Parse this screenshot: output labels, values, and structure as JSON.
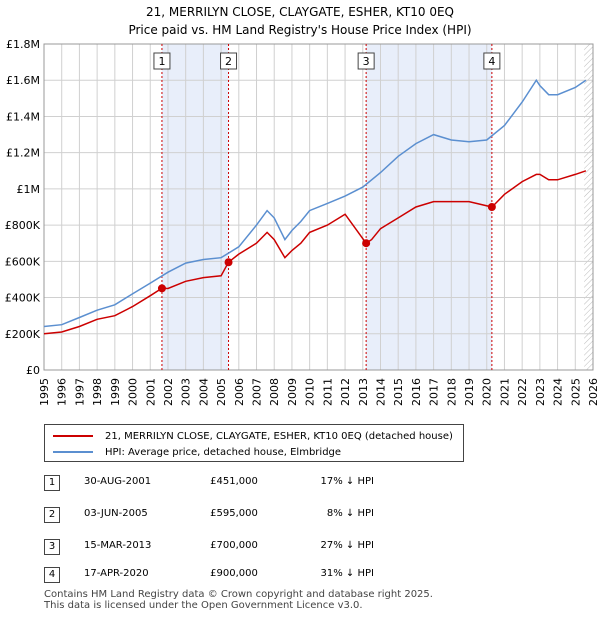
{
  "chart_data": {
    "type": "line",
    "title": "21, MERRILYN CLOSE, CLAYGATE, ESHER, KT10 0EQ",
    "subtitle": "Price paid vs. HM Land Registry's House Price Index (HPI)",
    "xlim": [
      1995,
      2026
    ],
    "ylim": [
      0,
      1800000
    ],
    "x_ticks": [
      1995,
      1996,
      1997,
      1998,
      1999,
      2000,
      2001,
      2002,
      2003,
      2004,
      2005,
      2006,
      2007,
      2008,
      2009,
      2010,
      2011,
      2012,
      2013,
      2014,
      2015,
      2016,
      2017,
      2018,
      2019,
      2020,
      2021,
      2022,
      2023,
      2024,
      2025,
      2026
    ],
    "x_tick_labels": [
      "1995",
      "1996",
      "1997",
      "1998",
      "1999",
      "2000",
      "2001",
      "2002",
      "2003",
      "2004",
      "2005",
      "2006",
      "2007",
      "2008",
      "2009",
      "2010",
      "2011",
      "2012",
      "2013",
      "2014",
      "2015",
      "2016",
      "2017",
      "2018",
      "2019",
      "2020",
      "2021",
      "2022",
      "2023",
      "2024",
      "2025",
      "2026"
    ],
    "y_ticks": [
      0,
      200000,
      400000,
      600000,
      800000,
      1000000,
      1200000,
      1400000,
      1600000,
      1800000
    ],
    "y_tick_labels": [
      "£0",
      "£200K",
      "£400K",
      "£600K",
      "£800K",
      "£1M",
      "£1.2M",
      "£1.4M",
      "£1.6M",
      "£1.8M"
    ],
    "series": [
      {
        "name": "21, MERRILYN CLOSE, CLAYGATE, ESHER, KT10 0EQ (detached house)",
        "color": "#cc0000",
        "x": [
          1995,
          1996,
          1997,
          1998,
          1999,
          2000,
          2001,
          2001.66,
          2002,
          2003,
          2004,
          2005,
          2005.42,
          2006,
          2007,
          2007.6,
          2008,
          2008.6,
          2009,
          2009.5,
          2010,
          2011,
          2012,
          2013.19,
          2013.5,
          2014,
          2015,
          2016,
          2017,
          2018,
          2019,
          2020.29,
          2020.5,
          2021,
          2022,
          2022.8,
          2023,
          2023.5,
          2024,
          2025,
          2025.6
        ],
        "values": [
          200000,
          210000,
          240000,
          280000,
          300000,
          350000,
          410000,
          451000,
          450000,
          490000,
          510000,
          520000,
          595000,
          640000,
          700000,
          760000,
          720000,
          620000,
          660000,
          700000,
          760000,
          800000,
          860000,
          700000,
          720000,
          780000,
          840000,
          900000,
          930000,
          930000,
          930000,
          900000,
          920000,
          970000,
          1040000,
          1080000,
          1080000,
          1050000,
          1050000,
          1080000,
          1100000
        ]
      },
      {
        "name": "HPI: Average price, detached house, Elmbridge",
        "color": "#5b8fd0",
        "x": [
          1995,
          1996,
          1997,
          1998,
          1999,
          2000,
          2001,
          2002,
          2003,
          2004,
          2005,
          2006,
          2007,
          2007.6,
          2008,
          2008.6,
          2009,
          2009.5,
          2010,
          2011,
          2012,
          2013,
          2014,
          2015,
          2016,
          2017,
          2018,
          2019,
          2020,
          2021,
          2022,
          2022.8,
          2023,
          2023.5,
          2024,
          2025,
          2025.6
        ],
        "values": [
          240000,
          250000,
          290000,
          330000,
          360000,
          420000,
          480000,
          540000,
          590000,
          610000,
          620000,
          680000,
          800000,
          880000,
          840000,
          720000,
          770000,
          820000,
          880000,
          920000,
          960000,
          1010000,
          1090000,
          1180000,
          1250000,
          1300000,
          1270000,
          1260000,
          1270000,
          1350000,
          1480000,
          1600000,
          1570000,
          1520000,
          1520000,
          1560000,
          1600000
        ]
      }
    ],
    "sales": [
      {
        "label": "1",
        "x": 2001.66,
        "value": 451000
      },
      {
        "label": "2",
        "x": 2005.42,
        "value": 595000
      },
      {
        "label": "3",
        "x": 2013.19,
        "value": 700000
      },
      {
        "label": "4",
        "x": 2020.29,
        "value": 900000
      }
    ],
    "shaded_ranges": [
      [
        2001.66,
        2005.42
      ],
      [
        2013.19,
        2020.29
      ]
    ],
    "hatched_from": 2025.5,
    "colors": {
      "property": "#cc0000",
      "hpi": "#5b8fd0",
      "shade": "#e8eefa",
      "grid": "#d0d0d0",
      "vline": "#cc0000"
    }
  },
  "legend": {
    "property_label": "21, MERRILYN CLOSE, CLAYGATE, ESHER, KT10 0EQ (detached house)",
    "hpi_label": "HPI: Average price, detached house, Elmbridge"
  },
  "transactions": [
    {
      "num": "1",
      "date": "30-AUG-2001",
      "price": "£451,000",
      "pct": "17% ↓ HPI"
    },
    {
      "num": "2",
      "date": "03-JUN-2005",
      "price": "£595,000",
      "pct": "8% ↓ HPI"
    },
    {
      "num": "3",
      "date": "15-MAR-2013",
      "price": "£700,000",
      "pct": "27% ↓ HPI"
    },
    {
      "num": "4",
      "date": "17-APR-2020",
      "price": "£900,000",
      "pct": "31% ↓ HPI"
    }
  ],
  "footer": {
    "line1": "Contains HM Land Registry data © Crown copyright and database right 2025.",
    "line2": "This data is licensed under the Open Government Licence v3.0."
  }
}
